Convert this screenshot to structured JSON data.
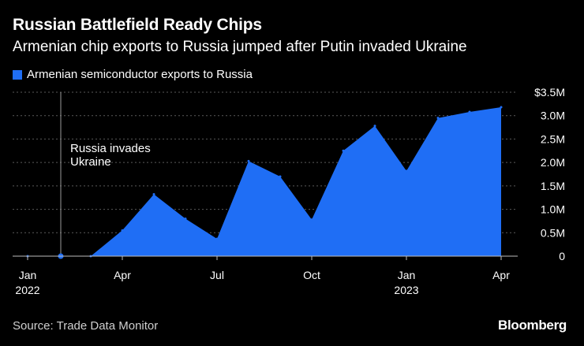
{
  "header": {
    "title": "Russian Battlefield Ready Chips",
    "subtitle": "Armenian chip exports to Russia jumped after Putin invaded Ukraine"
  },
  "footer": {
    "source": "Source: Trade Data Monitor",
    "brand": "Bloomberg"
  },
  "colors": {
    "series": "#1f6ef5",
    "background": "#000000",
    "grid": "#5a5a5a",
    "annotation_line": "#9a9a9a",
    "text": "#ffffff"
  },
  "chart_data": {
    "type": "area",
    "title": "Russian Battlefield Ready Chips",
    "subtitle": "Armenian chip exports to Russia jumped after Putin invaded Ukraine",
    "legend_position": "top-left",
    "grid": true,
    "xlabel": "",
    "ylabel": "",
    "x": [
      "2022-01",
      "2022-02",
      "2022-03",
      "2022-04",
      "2022-05",
      "2022-06",
      "2022-07",
      "2022-08",
      "2022-09",
      "2022-10",
      "2022-11",
      "2022-12",
      "2023-01",
      "2023-02",
      "2023-03",
      "2023-04"
    ],
    "series": [
      {
        "name": "Armenian semiconductor exports to Russia",
        "unit": "USD millions",
        "values": [
          0.0,
          0.0,
          0.0,
          0.55,
          1.32,
          0.8,
          0.37,
          2.03,
          1.7,
          0.78,
          2.25,
          2.78,
          1.82,
          2.95,
          3.08,
          3.18
        ]
      }
    ],
    "ylim": [
      0,
      3.5
    ],
    "y_ticks": [
      {
        "value": 0,
        "label": "0"
      },
      {
        "value": 0.5,
        "label": "0.5M"
      },
      {
        "value": 1.0,
        "label": "1.0M"
      },
      {
        "value": 1.5,
        "label": "1.5M"
      },
      {
        "value": 2.0,
        "label": "2.0M"
      },
      {
        "value": 2.5,
        "label": "2.5M"
      },
      {
        "value": 3.0,
        "label": "3.0M"
      },
      {
        "value": 3.5,
        "label": "$3.5M"
      }
    ],
    "x_ticks": [
      {
        "index": 0,
        "label": "Jan",
        "sublabel": "2022"
      },
      {
        "index": 3,
        "label": "Apr",
        "sublabel": ""
      },
      {
        "index": 6,
        "label": "Jul",
        "sublabel": ""
      },
      {
        "index": 9,
        "label": "Oct",
        "sublabel": ""
      },
      {
        "index": 12,
        "label": "Jan",
        "sublabel": "2023"
      },
      {
        "index": 15,
        "label": "Apr",
        "sublabel": ""
      }
    ],
    "annotations": [
      {
        "label_line1": "Russia invades",
        "label_line2": "Ukraine",
        "x_index": 1,
        "value": 0
      }
    ]
  }
}
